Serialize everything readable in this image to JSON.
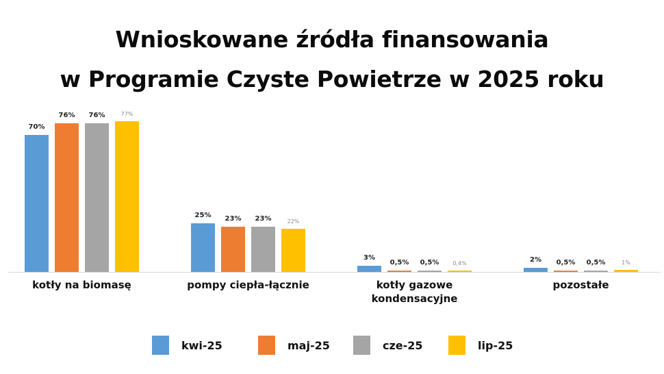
{
  "title": {
    "line1": "Wnioskowane źródła finansowania",
    "line2": "w Programie Czyste Powietrze w 2025 roku"
  },
  "colors": {
    "kwi-25": "#5b9bd5",
    "maj-25": "#ed7d31",
    "cze-25": "#a5a5a5",
    "lip-25": "#ffc000"
  },
  "legend": [
    {
      "label": "kwi-25",
      "color": "#5b9bd5"
    },
    {
      "label": "maj-25",
      "color": "#ed7d31"
    },
    {
      "label": "cze-25",
      "color": "#a5a5a5"
    },
    {
      "label": "lip-25",
      "color": "#ffc000"
    }
  ],
  "chart_data": {
    "type": "bar",
    "title": "Wnioskowane źródła finansowania w Programie Czyste Powietrze w 2025 roku",
    "xlabel": "",
    "ylabel": "",
    "ylim": [
      0,
      80
    ],
    "grid": false,
    "legend_position": "bottom",
    "categories": [
      "kotły na biomasę",
      "pompy ciepła-łącznie",
      "kotły gazowe kondensacyjne",
      "pozostałe"
    ],
    "category_lines": [
      [
        "kotły na biomasę"
      ],
      [
        "pompy ciepła-łącznie"
      ],
      [
        "kotły gazowe",
        "kondensacyjne"
      ],
      [
        "pozostałe"
      ]
    ],
    "series": [
      {
        "name": "kwi-25",
        "values": [
          70,
          25,
          3,
          2
        ],
        "labels": [
          "70%",
          "25%",
          "3%",
          "2%"
        ]
      },
      {
        "name": "maj-25",
        "values": [
          76,
          23,
          0.5,
          0.5
        ],
        "labels": [
          "76%",
          "23%",
          "0,5%",
          "0,5%"
        ]
      },
      {
        "name": "cze-25",
        "values": [
          76,
          23,
          0.5,
          0.5
        ],
        "labels": [
          "76%",
          "23%",
          "0,5%",
          "0,5%"
        ]
      },
      {
        "name": "lip-25",
        "values": [
          77,
          22,
          0.4,
          1
        ],
        "labels": [
          "77%",
          "22%",
          "0,4%",
          "1%"
        ]
      }
    ]
  }
}
